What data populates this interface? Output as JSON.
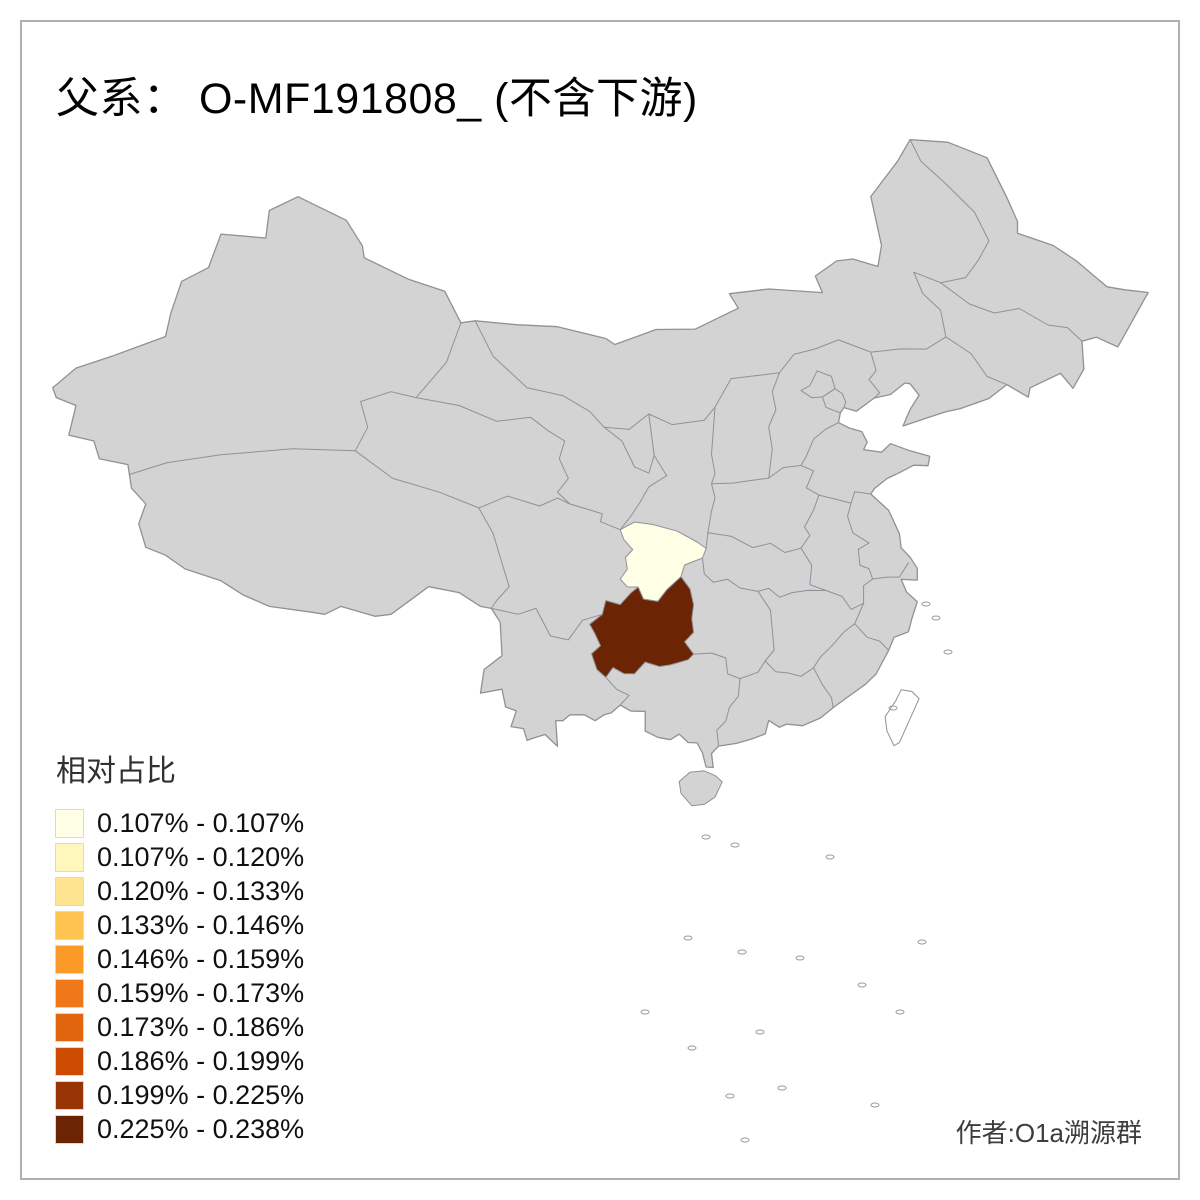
{
  "title": "父系： O-MF191808_ (不含下游)",
  "legend": {
    "title": "相对占比",
    "items": [
      {
        "label": "0.107% - 0.107%",
        "color": "#FFFFE5"
      },
      {
        "label": "0.107% - 0.120%",
        "color": "#FFF7BC"
      },
      {
        "label": "0.120% - 0.133%",
        "color": "#FEE391"
      },
      {
        "label": "0.133% - 0.146%",
        "color": "#FEC44F"
      },
      {
        "label": "0.146% - 0.159%",
        "color": "#FB9A29"
      },
      {
        "label": "0.159% - 0.173%",
        "color": "#F07818"
      },
      {
        "label": "0.173% - 0.186%",
        "color": "#E1650D"
      },
      {
        "label": "0.186% - 0.199%",
        "color": "#CC4C02"
      },
      {
        "label": "0.199% - 0.225%",
        "color": "#993404"
      },
      {
        "label": "0.225% - 0.238%",
        "color": "#6B2505"
      }
    ]
  },
  "credit": "作者:O1a溯源群",
  "map": {
    "base_fill": "#D3D3D3",
    "stroke": "#90909A",
    "background": "#FFFFFF",
    "highlights": [
      {
        "name": "chongqing",
        "bin": "0.107% - 0.107%",
        "color": "#FFFFE5"
      },
      {
        "name": "guizhou",
        "bin": "0.225% - 0.238%",
        "color": "#6B2505"
      }
    ]
  }
}
